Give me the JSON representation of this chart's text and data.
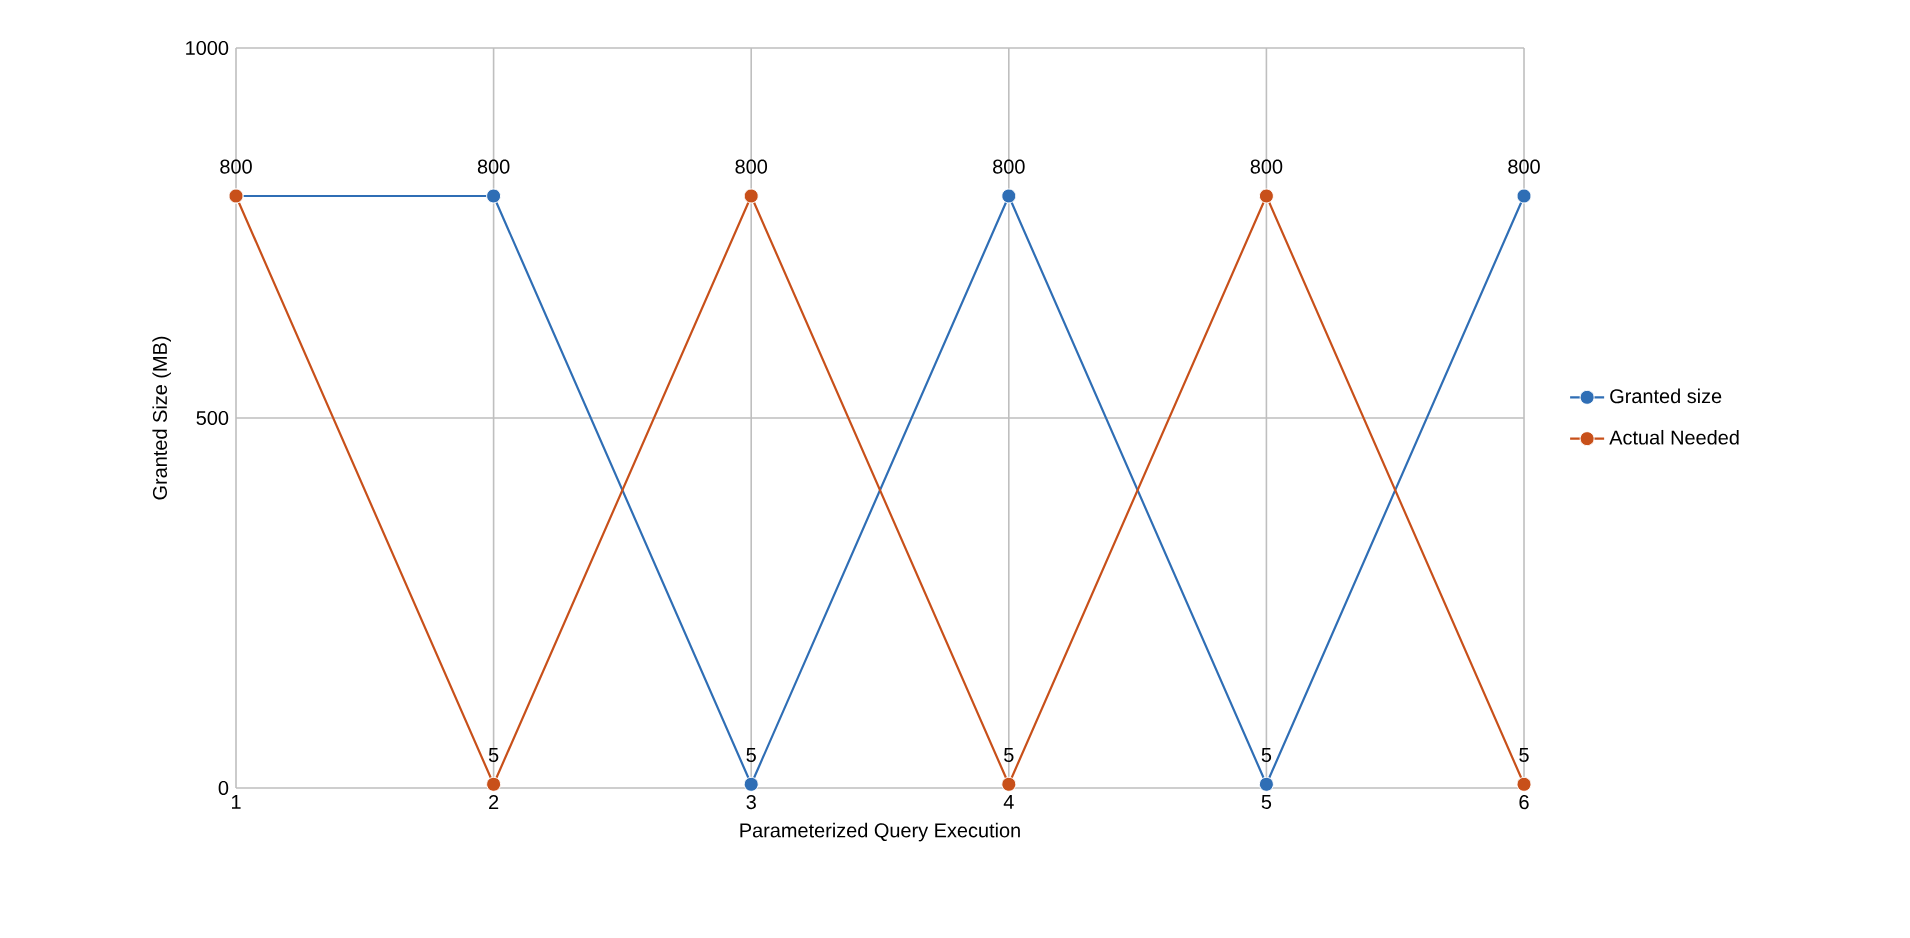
{
  "chart_data": {
    "type": "line",
    "xlabel": "Parameterized Query Execution",
    "ylabel": "Granted Size (MB)",
    "x": [
      1,
      2,
      3,
      4,
      5,
      6
    ],
    "series": [
      {
        "name": "Granted size",
        "color": "#2f6eb5",
        "values": [
          800,
          800,
          5,
          800,
          5,
          800
        ]
      },
      {
        "name": "Actual Needed",
        "color": "#c8501a",
        "values": [
          800,
          5,
          800,
          5,
          800,
          5
        ],
        "value_labels": [
          null,
          "5",
          "800",
          "5",
          "800",
          "5"
        ]
      }
    ],
    "xlim": [
      1,
      6
    ],
    "xticks": [
      1,
      2,
      3,
      4,
      5,
      6
    ],
    "ylim": [
      0,
      1000
    ],
    "yticks": [
      0,
      500,
      1000
    ],
    "grid": true,
    "legend": "right",
    "marker": "circle",
    "line_style": "solid",
    "data_labels": true
  }
}
